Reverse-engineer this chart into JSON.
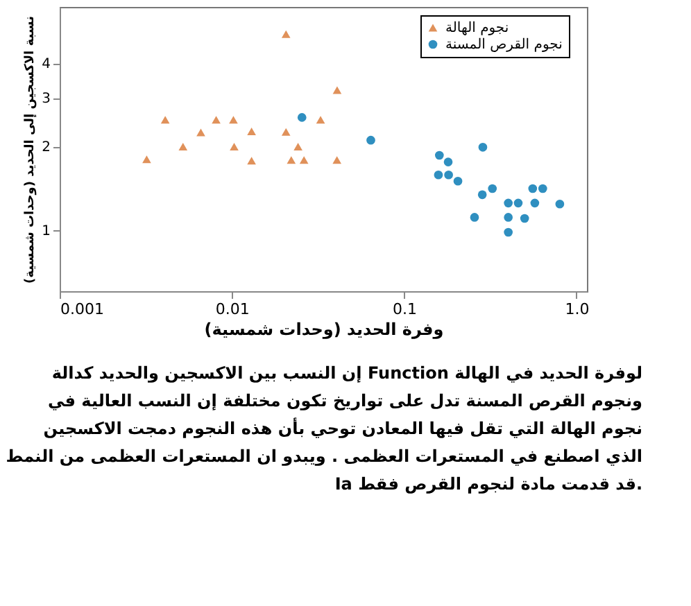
{
  "chart_data": {
    "type": "scatter",
    "xlabel": "وفرة الحديد (وحدات شمسية)",
    "ylabel": "نسبة الاكسجين إلى الحديد (وحدات شمسية)",
    "log": "xy",
    "grid": false,
    "legend": "top right",
    "xlim": [
      0.001,
      1.15
    ],
    "xticks": [
      0.001,
      0.01,
      0.1,
      {
        "value": 1,
        "label": "1.0"
      }
    ],
    "ylim": [
      0.6,
      6.4
    ],
    "yticks": [
      1,
      2,
      3,
      4
    ],
    "series": [
      {
        "name": "نجوم الهالة",
        "color": "#e0915a",
        "marker": "triangle",
        "x": [
          0.0032,
          0.0041,
          0.0052,
          0.0066,
          0.0081,
          0.0102,
          0.0103,
          0.013,
          0.013,
          0.0206,
          0.0206,
          0.0242,
          0.0221,
          0.0262,
          0.0327,
          0.0408,
          0.0407
        ],
        "values": [
          1.8,
          2.5,
          2.0,
          2.25,
          2.5,
          2.5,
          2.0,
          2.27,
          1.78,
          5.1,
          2.26,
          2.0,
          1.79,
          1.79,
          2.5,
          3.2,
          1.79
        ]
      },
      {
        "name": "نجوم القرص المسنة",
        "color": "#2f8fc0",
        "marker": "circle",
        "x": [
          0.0255,
          0.064,
          0.16,
          0.18,
          0.158,
          0.181,
          0.205,
          0.286,
          0.284,
          0.325,
          0.256,
          0.402,
          0.459,
          0.402,
          0.402,
          0.5,
          0.557,
          0.637,
          0.573,
          0.8
        ],
        "values": [
          2.55,
          2.11,
          1.86,
          1.76,
          1.58,
          1.58,
          1.5,
          1.99,
          1.34,
          1.41,
          1.11,
          1.25,
          1.25,
          1.11,
          0.98,
          1.1,
          1.41,
          1.41,
          1.25,
          1.24
        ]
      }
    ],
    "annotations": [
      "إن النسب بين الاكسجين والحديد كدالة Function لوفرة الحديد في الهالة ونجوم القرص المسنة تدل على تواريخ تكون مختلفة إن النسب العالية في نجوم الهالة التي تقل فيها المعادن توحي بأن هذه النجوم دمجت الاكسجين الذي اصطنع في المستعرات العظمى . ويبدو ان المستعرات العظمى من النمط Ia قد قدمت مادة لنجوم القرص فقط."
    ]
  }
}
